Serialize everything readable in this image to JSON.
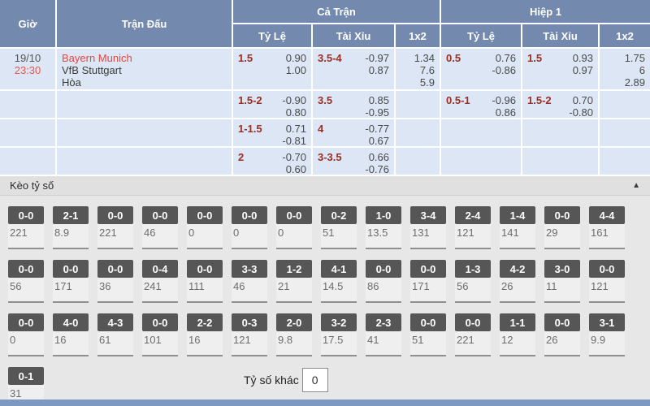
{
  "header": {
    "time": "Giờ",
    "match": "Trận Đấu",
    "full_time": "Cả Trận",
    "first_half": "Hiệp 1",
    "handicap": "Tỷ Lệ",
    "over_under": "Tài Xỉu",
    "one_x_two": "1x2"
  },
  "match": {
    "date": "19/10",
    "time": "23:30",
    "home": "Bayern Munich",
    "away": "VfB Stuttgart",
    "draw": "Hòa"
  },
  "odds_rows": [
    {
      "fh": {
        "line": "1.5",
        "o1": "0.90",
        "o2": "1.00"
      },
      "fo": {
        "line": "3.5-4",
        "o1": "-0.97",
        "o2": "0.87"
      },
      "fx": {
        "o1": "1.34",
        "o2": "7.6",
        "o3": "5.9"
      },
      "hh": {
        "line": "0.5",
        "o1": "0.76",
        "o2": "-0.86"
      },
      "ho": {
        "line": "1.5",
        "o1": "0.93",
        "o2": "0.97"
      },
      "hx": {
        "o1": "1.75",
        "o2": "6",
        "o3": "2.89"
      }
    },
    {
      "fh": {
        "line": "1.5-2",
        "o1": "-0.90",
        "o2": "0.80"
      },
      "fo": {
        "line": "3.5",
        "o1": "0.85",
        "o2": "-0.95"
      },
      "hh": {
        "line": "0.5-1",
        "o1": "-0.96",
        "o2": "0.86"
      },
      "ho": {
        "line": "1.5-2",
        "o1": "0.70",
        "o2": "-0.80"
      }
    },
    {
      "fh": {
        "line": "1-1.5",
        "o1": "0.71",
        "o2": "-0.81"
      },
      "fo": {
        "line": "4",
        "o1": "-0.77",
        "o2": "0.67"
      }
    },
    {
      "fh": {
        "line": "2",
        "o1": "-0.70",
        "o2": "0.60"
      },
      "fo": {
        "line": "3-3.5",
        "o1": "0.66",
        "o2": "-0.76"
      }
    }
  ],
  "score": {
    "title": "Kèo tỷ số",
    "collapse_icon": "▲",
    "row1": [
      {
        "s": "0-0",
        "v": "221"
      },
      {
        "s": "2-1",
        "v": "8.9"
      },
      {
        "s": "0-0",
        "v": "221"
      },
      {
        "s": "0-0",
        "v": "46"
      },
      {
        "s": "0-0",
        "v": "0"
      },
      {
        "s": "0-0",
        "v": "0"
      },
      {
        "s": "0-0",
        "v": "0"
      },
      {
        "s": "0-2",
        "v": "51"
      },
      {
        "s": "1-0",
        "v": "13.5"
      },
      {
        "s": "3-4",
        "v": "131"
      },
      {
        "s": "2-4",
        "v": "121"
      },
      {
        "s": "1-4",
        "v": "141"
      },
      {
        "s": "0-0",
        "v": "29"
      },
      {
        "s": "4-4",
        "v": "161"
      }
    ],
    "row2": [
      {
        "s": "0-0",
        "v": "56"
      },
      {
        "s": "0-0",
        "v": "171"
      },
      {
        "s": "0-0",
        "v": "36"
      },
      {
        "s": "0-4",
        "v": "241"
      },
      {
        "s": "0-0",
        "v": "111"
      },
      {
        "s": "3-3",
        "v": "46"
      },
      {
        "s": "1-2",
        "v": "21"
      },
      {
        "s": "4-1",
        "v": "14.5"
      },
      {
        "s": "0-0",
        "v": "86"
      },
      {
        "s": "0-0",
        "v": "171"
      },
      {
        "s": "1-3",
        "v": "56"
      },
      {
        "s": "4-2",
        "v": "26"
      },
      {
        "s": "3-0",
        "v": "11"
      },
      {
        "s": "0-0",
        "v": "121"
      }
    ],
    "row3": [
      {
        "s": "0-0",
        "v": "0"
      },
      {
        "s": "4-0",
        "v": "16"
      },
      {
        "s": "4-3",
        "v": "61"
      },
      {
        "s": "0-0",
        "v": "101"
      },
      {
        "s": "2-2",
        "v": "16"
      },
      {
        "s": "0-3",
        "v": "121"
      },
      {
        "s": "2-0",
        "v": "9.8"
      },
      {
        "s": "3-2",
        "v": "17.5"
      },
      {
        "s": "2-3",
        "v": "41"
      },
      {
        "s": "0-0",
        "v": "51"
      },
      {
        "s": "0-0",
        "v": "221"
      },
      {
        "s": "1-1",
        "v": "12"
      },
      {
        "s": "0-0",
        "v": "26"
      },
      {
        "s": "3-1",
        "v": "9.9"
      }
    ],
    "last": {
      "s": "0-1",
      "v": "31"
    },
    "other_label": "Tỷ số khác",
    "other_value": "0"
  }
}
